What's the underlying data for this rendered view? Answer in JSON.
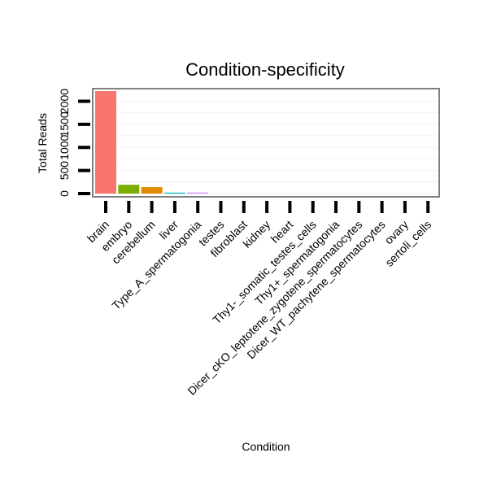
{
  "chart_data": {
    "type": "bar",
    "title": "Condition-specificity",
    "xlabel": "Condition",
    "ylabel": "Total Reads",
    "categories": [
      "brain",
      "embryo",
      "cerebellum",
      "liver",
      "Type_A_spermatogonia",
      "testes",
      "fibroblast",
      "kidney",
      "heart",
      "Thy1-_somatic_testes_cells",
      "Thy1+_spermatogonia",
      "Dicer_cKO_leptotene_zygotene_spermatocytes",
      "Dicer_WT_pachytene_spermatocytes",
      "ovary",
      "sertoli_cells"
    ],
    "values": [
      2220,
      190,
      140,
      20,
      15,
      0,
      0,
      0,
      0,
      0,
      0,
      0,
      0,
      0,
      0
    ],
    "colors": [
      "#F8766D",
      "#7CAE00",
      "#E08B00",
      "#00BFC4",
      "#C77CFF",
      "#E58700",
      "#C99800",
      "#A3A500",
      "#6BB100",
      "#00BA38",
      "#00C08B",
      "#00BCD8",
      "#00B0F6",
      "#619CFF",
      "#FF67A4"
    ],
    "y_ticks": [
      0,
      500,
      1000,
      1500,
      2000
    ],
    "ylim": [
      -80,
      2350
    ],
    "grid": true,
    "legend": "none"
  }
}
